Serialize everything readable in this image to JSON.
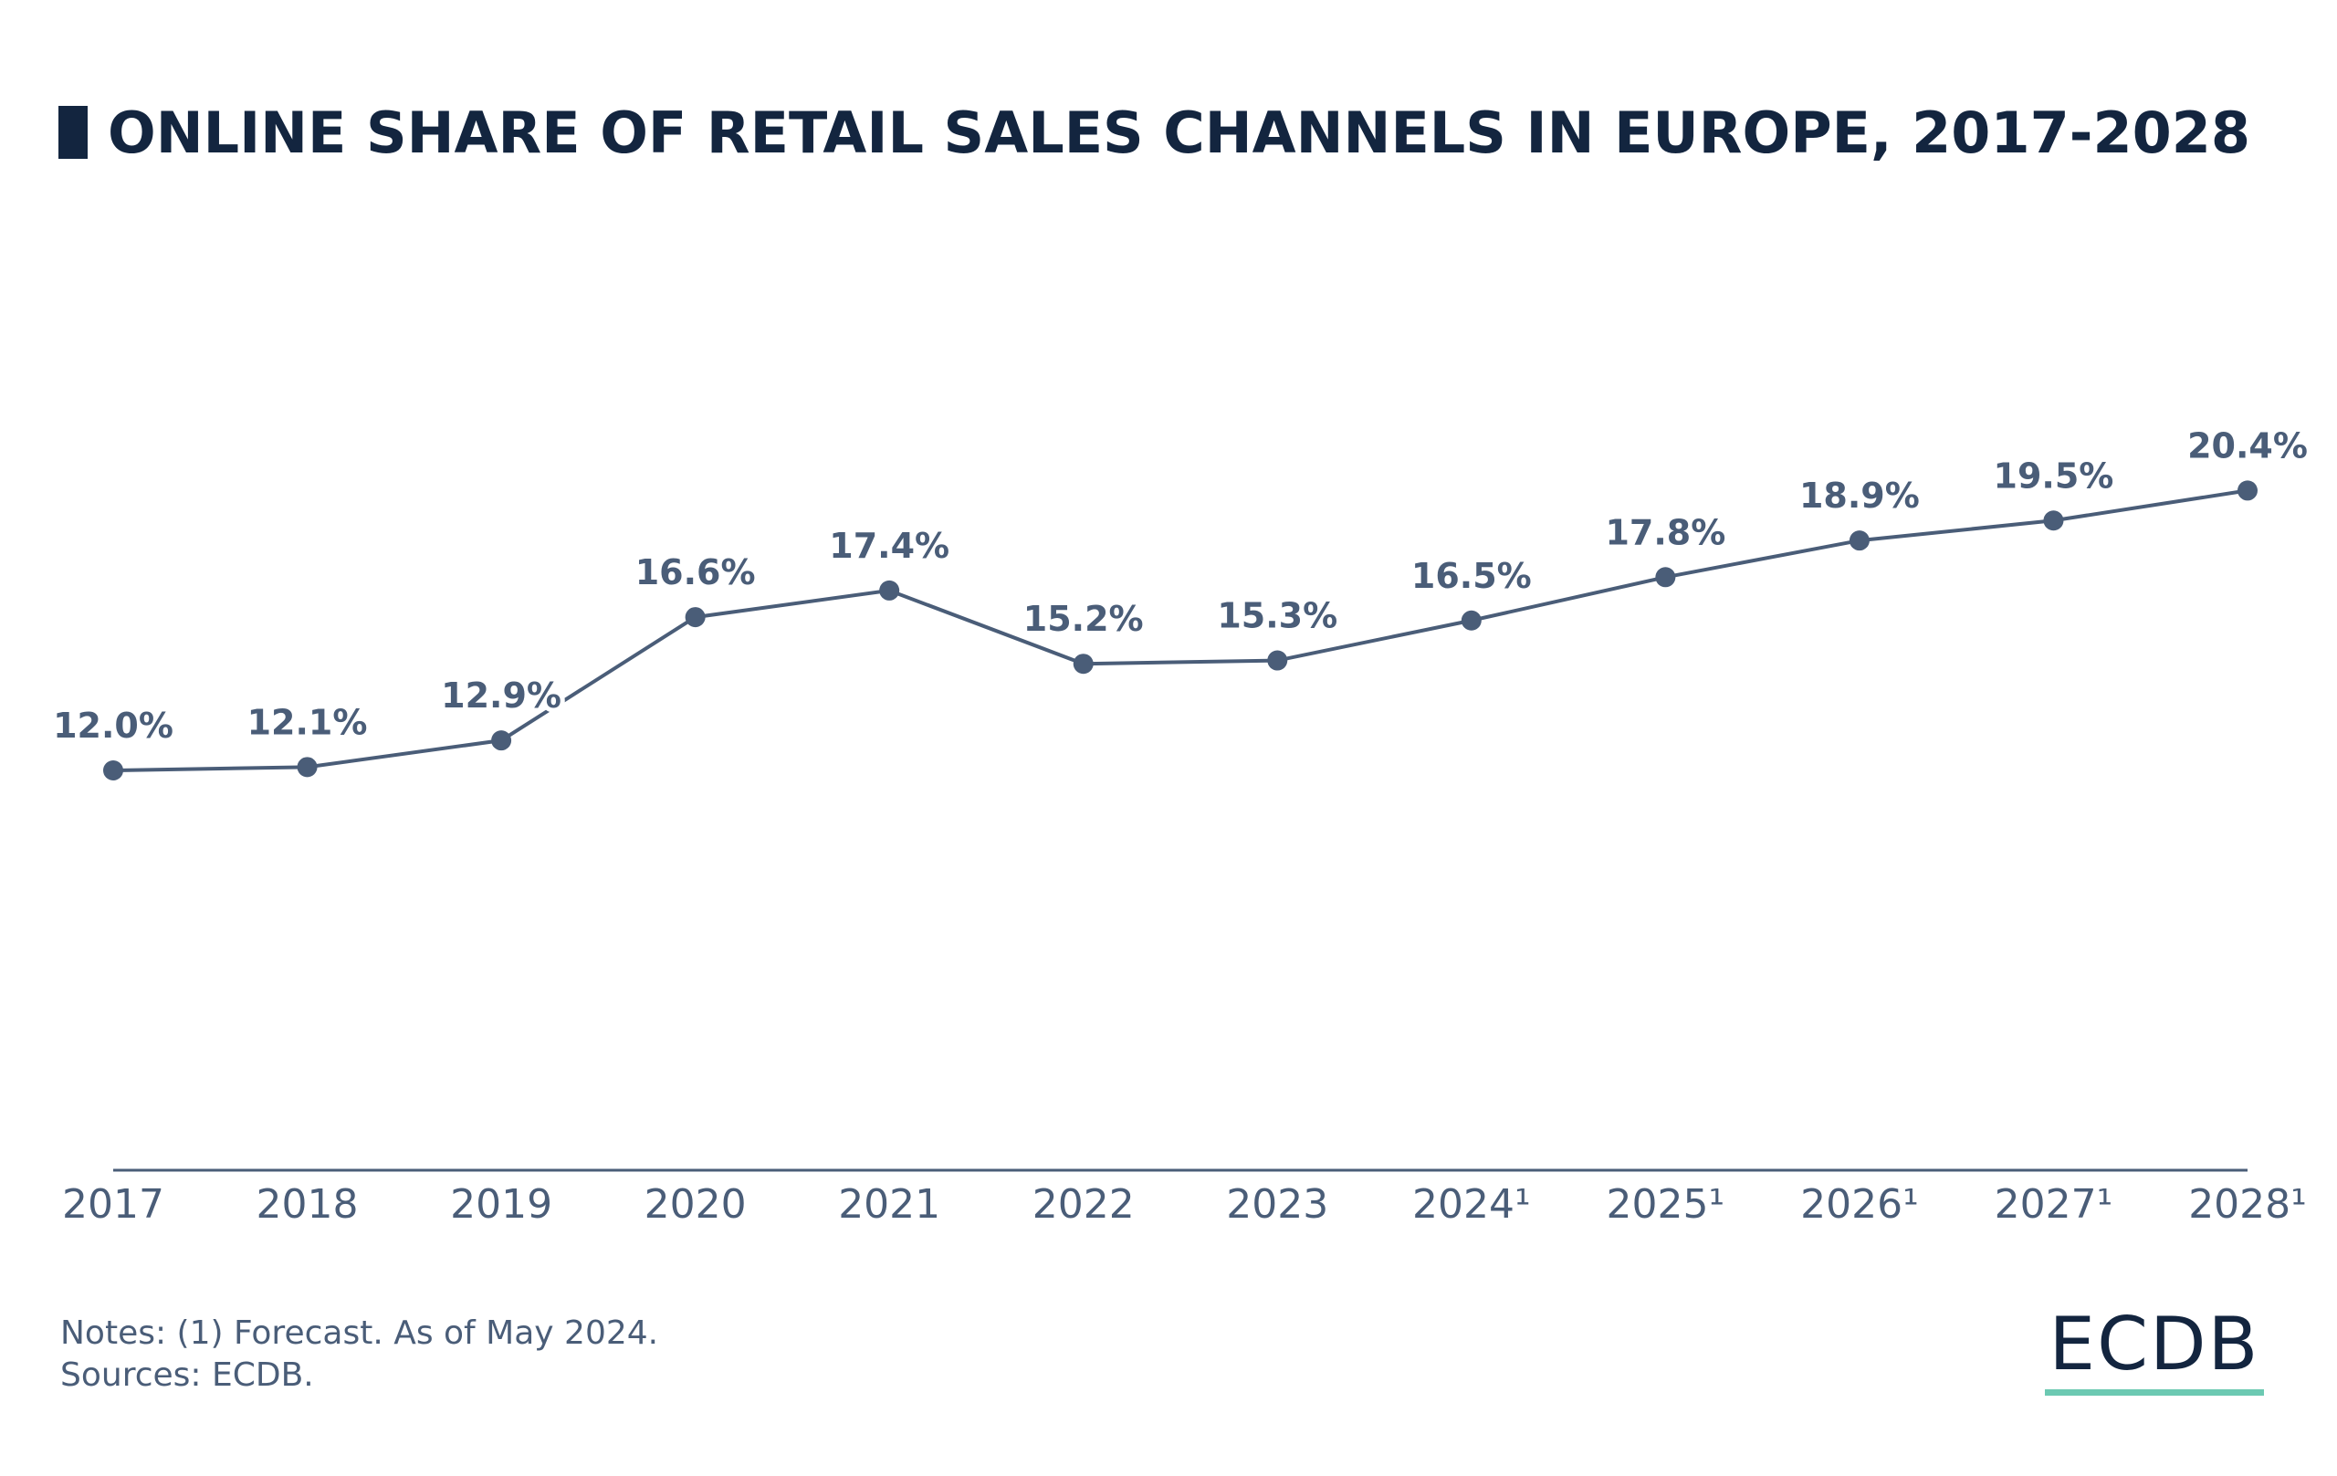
{
  "header": {
    "title": "ONLINE SHARE OF RETAIL SALES CHANNELS IN EUROPE, 2017-2028"
  },
  "footer": {
    "notes": "Notes: (1) Forecast. As of May 2024.",
    "sources": "Sources: ECDB."
  },
  "logo": {
    "text": "ECDB",
    "accent_color": "#6cc9b2"
  },
  "colors": {
    "line": "#4a5d78",
    "title": "#13253f",
    "axis": "#4a5d78"
  },
  "chart_data": {
    "type": "line",
    "title": "ONLINE SHARE OF RETAIL SALES CHANNELS IN EUROPE, 2017-2028",
    "xlabel": "",
    "ylabel": "",
    "categories": [
      "2017",
      "2018",
      "2019",
      "2020",
      "2021",
      "2022",
      "2023",
      "2024¹",
      "2025¹",
      "2026¹",
      "2027¹",
      "2028¹"
    ],
    "series": [
      {
        "name": "Online share",
        "values": [
          12.0,
          12.1,
          12.9,
          16.6,
          17.4,
          15.2,
          15.3,
          16.5,
          17.8,
          18.9,
          19.5,
          20.4
        ],
        "labels": [
          "12.0%",
          "12.1%",
          "12.9%",
          "16.6%",
          "17.4%",
          "15.2%",
          "15.3%",
          "16.5%",
          "17.8%",
          "18.9%",
          "19.5%",
          "20.4%"
        ]
      }
    ],
    "ylim": [
      0,
      32
    ],
    "grid": false,
    "legend": "none"
  }
}
